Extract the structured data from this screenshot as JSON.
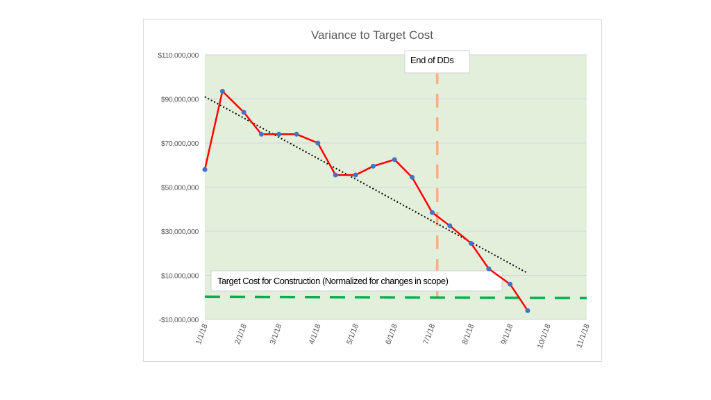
{
  "chart_data": {
    "type": "line",
    "title": "Variance to Target Cost",
    "xlabel": "",
    "ylabel": "",
    "ylim": [
      -10000000,
      110000000
    ],
    "xlim": [
      "2018-01-01",
      "2018-11-01"
    ],
    "y_ticks": [
      "$110,000,000",
      "$90,000,000",
      "$70,000,000",
      "$50,000,000",
      "$30,000,000",
      "$10,000,000",
      "-$10,000,000"
    ],
    "y_tick_values": [
      110000000,
      90000000,
      70000000,
      50000000,
      30000000,
      10000000,
      -10000000
    ],
    "x_ticks": [
      "1/1/18",
      "2/1/18",
      "3/1/18",
      "4/1/18",
      "5/1/18",
      "6/1/18",
      "7/1/18",
      "8/1/18",
      "9/1/18",
      "10/1/18",
      "11/1/18"
    ],
    "x_tick_values": [
      "2018-01-01",
      "2018-02-01",
      "2018-03-01",
      "2018-04-01",
      "2018-05-01",
      "2018-06-01",
      "2018-07-01",
      "2018-08-01",
      "2018-09-01",
      "2018-10-01",
      "2018-11-01"
    ],
    "grid": true,
    "plot_background": "#e2efda",
    "series": [
      {
        "color": "#ff0000",
        "marker_color": "#4472c4",
        "points": [
          [
            "2018-01-01",
            58000000
          ],
          [
            "2018-01-15",
            93500000
          ],
          [
            "2018-02-01",
            84000000
          ],
          [
            "2018-02-15",
            74000000
          ],
          [
            "2018-03-01",
            74000000
          ],
          [
            "2018-03-15",
            74000000
          ],
          [
            "2018-04-01",
            70000000
          ],
          [
            "2018-04-15",
            55500000
          ],
          [
            "2018-05-01",
            55500000
          ],
          [
            "2018-05-15",
            59500000
          ],
          [
            "2018-06-01",
            62500000
          ],
          [
            "2018-06-15",
            54500000
          ],
          [
            "2018-07-01",
            38500000
          ],
          [
            "2018-07-15",
            32500000
          ],
          [
            "2018-08-01",
            24500000
          ],
          [
            "2018-08-15",
            13000000
          ],
          [
            "2018-09-01",
            6000000
          ],
          [
            "2018-09-15",
            -6000000
          ]
        ]
      }
    ],
    "trendline": {
      "type": "linear",
      "style": "dotted",
      "color": "#000000",
      "from": [
        "2018-01-01",
        91000000
      ],
      "to": [
        "2018-09-15",
        11000000
      ]
    },
    "annotations": [
      {
        "text": "End of DDs",
        "type": "vertical-line",
        "x": "2018-07-05",
        "color": "#f4b183",
        "style": "dashed"
      },
      {
        "text": "Target Cost for Construction (Normalized for changes in scope)",
        "type": "horizontal-line",
        "y": 0,
        "color": "#00b050",
        "style": "dashed"
      }
    ]
  }
}
